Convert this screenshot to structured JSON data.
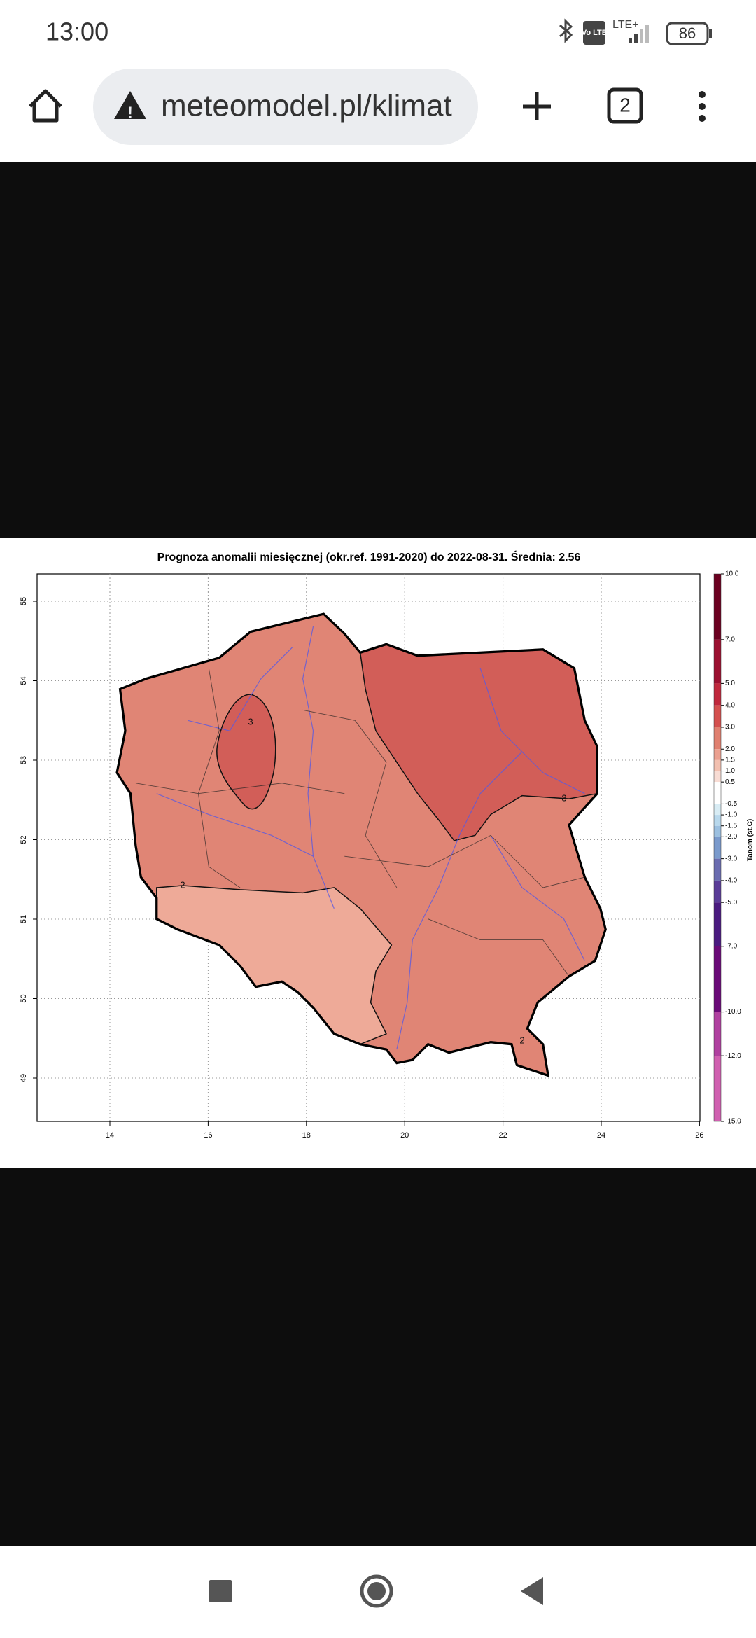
{
  "status_bar": {
    "time": "13:00",
    "volte": "Vo LTE",
    "network": "LTE+",
    "battery": "86"
  },
  "address_bar": {
    "url": "meteomodel.pl/klimat",
    "tabs": "2"
  },
  "map": {
    "title": "Prognoza anomalii miesięcznej (okr.ref. 1991-2020) do 2022-08-31. Średnia: 2.56",
    "lon_ticks": [
      14,
      16,
      18,
      20,
      22,
      24,
      26
    ],
    "lat_ticks": [
      55,
      54,
      53,
      52,
      51,
      50,
      49
    ],
    "contour_labels": [
      "3",
      "3",
      "2",
      "2"
    ],
    "colorbar": {
      "label": "Tanom (st.C)",
      "ticks": [
        {
          "value": 10,
          "label": "10.0"
        },
        {
          "value": 7,
          "label": "7.0"
        },
        {
          "value": 5,
          "label": "5.0"
        },
        {
          "value": 4,
          "label": "4.0"
        },
        {
          "value": 3,
          "label": "3.0"
        },
        {
          "value": 2,
          "label": "2.0"
        },
        {
          "value": 1.5,
          "label": "1.5"
        },
        {
          "value": 1,
          "label": "1.0"
        },
        {
          "value": 0.5,
          "label": "0.5"
        },
        {
          "value": -0.5,
          "label": "-0.5"
        },
        {
          "value": -1,
          "label": "-1.0"
        },
        {
          "value": -1.5,
          "label": "-1.5"
        },
        {
          "value": -2,
          "label": "-2.0"
        },
        {
          "value": -3,
          "label": "-3.0"
        },
        {
          "value": -4,
          "label": "-4.0"
        },
        {
          "value": -5,
          "label": "-5.0"
        },
        {
          "value": -7,
          "label": "-7.0"
        },
        {
          "value": -10,
          "label": "-10.0"
        },
        {
          "value": -12,
          "label": "-12.0"
        },
        {
          "value": -15,
          "label": "-15.0"
        }
      ]
    }
  }
}
